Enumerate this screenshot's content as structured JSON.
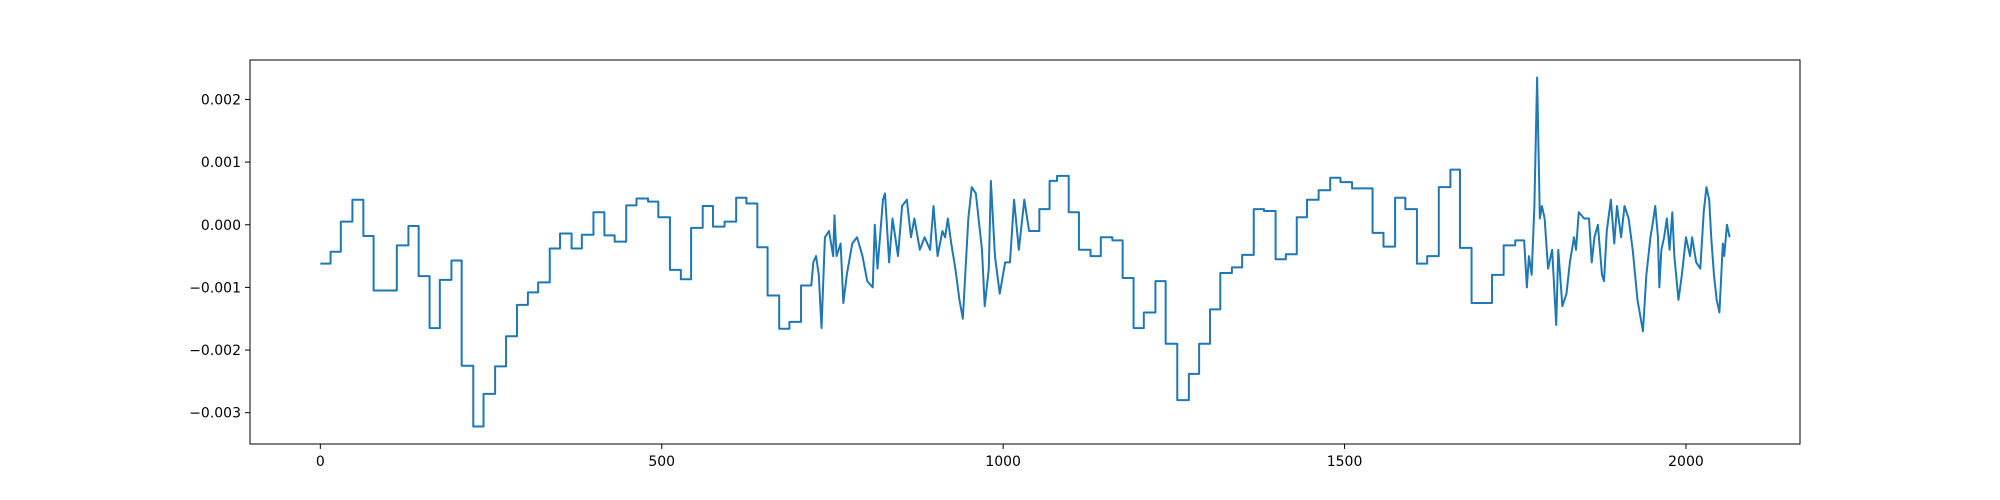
{
  "chart_data": {
    "type": "line",
    "color": "#1f77b4",
    "xlim": [
      -103,
      2167
    ],
    "ylim": [
      -0.0035,
      0.00263
    ],
    "xticks": [
      0,
      500,
      1000,
      1500,
      2000
    ],
    "yticks": [
      {
        "value": -0.003,
        "label": "−0.003"
      },
      {
        "value": -0.002,
        "label": "−0.002"
      },
      {
        "value": -0.001,
        "label": "−0.001"
      },
      {
        "value": 0,
        "label": "0.000"
      },
      {
        "value": 0.001,
        "label": "0.001"
      },
      {
        "value": 0.002,
        "label": "0.002"
      }
    ],
    "x": [
      0,
      15,
      15,
      30,
      30,
      47,
      47,
      63,
      63,
      78,
      78,
      112,
      112,
      129,
      129,
      144,
      144,
      160,
      160,
      175,
      175,
      192,
      192,
      207,
      207,
      224,
      224,
      239,
      239,
      256,
      256,
      272,
      272,
      288,
      288,
      304,
      304,
      319,
      319,
      336,
      336,
      351,
      351,
      368,
      368,
      383,
      383,
      400,
      400,
      416,
      416,
      431,
      431,
      448,
      448,
      463,
      463,
      480,
      480,
      495,
      495,
      512,
      512,
      528,
      528,
      543,
      543,
      560,
      560,
      575,
      575,
      592,
      592,
      609,
      609,
      624,
      624,
      640,
      640,
      655,
      655,
      672,
      672,
      687,
      687,
      704,
      704,
      719,
      722,
      726,
      730,
      734,
      739,
      745,
      751,
      753,
      756,
      762,
      766,
      771,
      779,
      786,
      794,
      801,
      809,
      812,
      816,
      824,
      827,
      833,
      838,
      846,
      852,
      859,
      865,
      870,
      878,
      885,
      893,
      898,
      904,
      911,
      915,
      919,
      924,
      930,
      936,
      941,
      945,
      949,
      954,
      960,
      964,
      969,
      973,
      979,
      982,
      988,
      995,
      1003,
      1010,
      1016,
      1023,
      1031,
      1038,
      1053,
      1053,
      1068,
      1068,
      1079,
      1079,
      1096,
      1096,
      1111,
      1111,
      1128,
      1128,
      1143,
      1143,
      1160,
      1160,
      1175,
      1175,
      1191,
      1191,
      1206,
      1206,
      1223,
      1223,
      1238,
      1238,
      1255,
      1255,
      1272,
      1272,
      1287,
      1287,
      1303,
      1303,
      1318,
      1318,
      1335,
      1335,
      1350,
      1350,
      1367,
      1367,
      1382,
      1382,
      1399,
      1399,
      1414,
      1414,
      1430,
      1430,
      1445,
      1445,
      1462,
      1462,
      1479,
      1479,
      1494,
      1494,
      1511,
      1511,
      1541,
      1541,
      1557,
      1557,
      1574,
      1574,
      1589,
      1589,
      1606,
      1606,
      1621,
      1621,
      1638,
      1638,
      1655,
      1655,
      1669,
      1669,
      1686,
      1686,
      1716,
      1716,
      1733,
      1733,
      1750,
      1750,
      1763,
      1767,
      1770,
      1774,
      1778,
      1782,
      1786,
      1789,
      1793,
      1798,
      1804,
      1810,
      1813,
      1819,
      1825,
      1830,
      1836,
      1839,
      1843,
      1851,
      1858,
      1862,
      1866,
      1871,
      1877,
      1880,
      1884,
      1890,
      1895,
      1899,
      1905,
      1910,
      1916,
      1922,
      1929,
      1937,
      1942,
      1948,
      1951,
      1955,
      1959,
      1961,
      1964,
      1968,
      1972,
      1976,
      1980,
      1983,
      1989,
      1994,
      2000,
      2006,
      2009,
      2015,
      2021,
      2026,
      2030,
      2034,
      2037,
      2041,
      2045,
      2049,
      2054,
      2056,
      2060,
      2064
    ],
    "values": [
      -0.00062,
      -0.00062,
      -0.00043,
      -0.00043,
      5e-05,
      5e-05,
      0.0004,
      0.0004,
      -0.00018,
      -0.00018,
      -0.00105,
      -0.00105,
      -0.00033,
      -0.00033,
      -2e-05,
      -2e-05,
      -0.00082,
      -0.00082,
      -0.00165,
      -0.00165,
      -0.00088,
      -0.00088,
      -0.00057,
      -0.00057,
      -0.00225,
      -0.00225,
      -0.00322,
      -0.00322,
      -0.0027,
      -0.0027,
      -0.00226,
      -0.00226,
      -0.00178,
      -0.00178,
      -0.00128,
      -0.00128,
      -0.00108,
      -0.00108,
      -0.00092,
      -0.00092,
      -0.00038,
      -0.00038,
      -0.00014,
      -0.00014,
      -0.00038,
      -0.00038,
      -0.00016,
      -0.00016,
      0.0002,
      0.0002,
      -0.00017,
      -0.00017,
      -0.00027,
      -0.00027,
      0.00031,
      0.00031,
      0.00042,
      0.00042,
      0.00037,
      0.00037,
      0.00012,
      0.00012,
      -0.00072,
      -0.00072,
      -0.00087,
      -0.00087,
      -5e-05,
      -5e-05,
      0.0003,
      0.0003,
      -3e-05,
      -3e-05,
      5e-05,
      5e-05,
      0.00043,
      0.00043,
      0.00034,
      0.00034,
      -0.00036,
      -0.00036,
      -0.00113,
      -0.00113,
      -0.00166,
      -0.00166,
      -0.00155,
      -0.00155,
      -0.00097,
      -0.00097,
      -0.0006,
      -0.0005,
      -0.0008,
      -0.00165,
      -0.0002,
      -0.0001,
      -0.0005,
      0.00015,
      -0.0005,
      -0.0003,
      -0.00125,
      -0.0008,
      -0.0003,
      -0.0002,
      -0.0005,
      -0.0009,
      -0.001,
      0,
      -0.0007,
      0.0004,
      0.0005,
      -0.0006,
      0.0001,
      -0.0005,
      0.0003,
      0.0004,
      -0.0002,
      0.0001,
      -0.0004,
      -0.0002,
      -0.0004,
      0.0003,
      -0.0005,
      -0.0001,
      -0.0002,
      0.0001,
      -0.0003,
      -0.0007,
      -0.0012,
      -0.0015,
      -0.0007,
      0.0001,
      0.0006,
      0.0005,
      0.0001,
      -0.0004,
      -0.0013,
      -0.0007,
      0.0007,
      -0.0005,
      -0.0011,
      -0.0006,
      -0.0006,
      0.0004,
      -0.0004,
      0.0004,
      -0.0001,
      -0.0001,
      0.00025,
      0.00025,
      0.0007,
      0.0007,
      0.00078,
      0.00078,
      0.0002,
      0.0002,
      -0.0004,
      -0.0004,
      -0.0005,
      -0.0005,
      -0.0002,
      -0.0002,
      -0.00025,
      -0.00025,
      -0.00085,
      -0.00085,
      -0.00165,
      -0.00165,
      -0.0014,
      -0.0014,
      -0.0009,
      -0.0009,
      -0.0019,
      -0.0019,
      -0.0028,
      -0.0028,
      -0.00238,
      -0.00238,
      -0.0019,
      -0.0019,
      -0.00135,
      -0.00135,
      -0.00077,
      -0.00077,
      -0.00068,
      -0.00068,
      -0.00048,
      -0.00048,
      0.00025,
      0.00025,
      0.00022,
      0.00022,
      -0.00055,
      -0.00055,
      -0.00047,
      -0.00047,
      0.00012,
      0.00012,
      0.0004,
      0.0004,
      0.00055,
      0.00055,
      0.00075,
      0.00075,
      0.00068,
      0.00068,
      0.00058,
      0.00058,
      -0.00013,
      -0.00013,
      -0.00035,
      -0.00035,
      0.00043,
      0.00043,
      0.00025,
      0.00025,
      -0.00062,
      -0.00062,
      -0.0005,
      -0.0005,
      0.0006,
      0.0006,
      0.00088,
      0.00088,
      -0.00037,
      -0.00037,
      -0.00125,
      -0.00125,
      -0.0008,
      -0.0008,
      -0.00033,
      -0.00033,
      -0.00025,
      -0.00025,
      -0.001,
      -0.0005,
      -0.0008,
      0.0003,
      0.00235,
      0.0001,
      0.0003,
      0.0001,
      -0.0007,
      -0.0004,
      -0.0016,
      -0.0004,
      -0.0013,
      -0.0011,
      -0.0006,
      -0.0002,
      -0.0004,
      0.0002,
      0.0001,
      0.0001,
      -0.0006,
      -0.0002,
      0,
      -0.0008,
      -0.0009,
      -0.0001,
      0.0004,
      -0.0003,
      0.0003,
      -0.0002,
      0.0003,
      0.0001,
      -0.0004,
      -0.0012,
      -0.0017,
      -0.0008,
      -0.0002,
      0,
      0.0003,
      -0.0002,
      -0.001,
      -0.0004,
      -0.0002,
      0.0001,
      -0.0004,
      0.0002,
      -0.0005,
      -0.0012,
      -0.0008,
      -0.0002,
      -0.0005,
      -0.0002,
      -0.0006,
      -0.0007,
      0.0002,
      0.0006,
      0.0004,
      -0.0002,
      -0.0008,
      -0.0012,
      -0.0014,
      -0.0003,
      -0.0005,
      0,
      -0.0002
    ]
  }
}
